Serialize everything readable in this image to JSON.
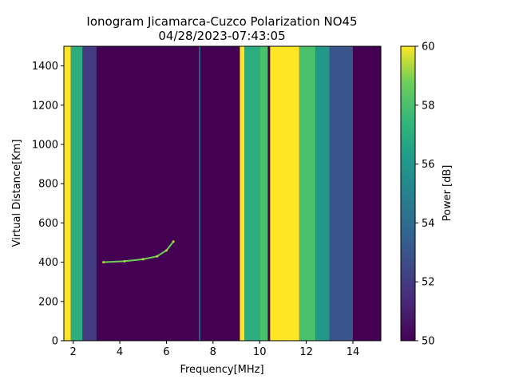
{
  "chart_data": {
    "type": "heatmap",
    "title": "Ionogram Jicamarca-Cuzco Polarization NO45",
    "subtitle": "04/28/2023-07:43:05",
    "xlabel": "Frequency[MHz]",
    "ylabel": "Virtual Distance[Km]",
    "xlim": [
      1.6,
      15.2
    ],
    "ylim": [
      0,
      1500
    ],
    "xticks": [
      2,
      4,
      6,
      8,
      10,
      12,
      14
    ],
    "xtick_labels": [
      "2",
      "4",
      "6",
      "8",
      "10",
      "12",
      "14"
    ],
    "yticks": [
      0,
      200,
      400,
      600,
      800,
      1000,
      1200,
      1400
    ],
    "ytick_labels": [
      "0",
      "200",
      "400",
      "600",
      "800",
      "1000",
      "1200",
      "1400"
    ],
    "colorbar": {
      "label": "Power [dB]",
      "range": [
        50,
        60
      ],
      "ticks": [
        50,
        52,
        54,
        56,
        58,
        60
      ],
      "tick_labels": [
        "50",
        "52",
        "54",
        "56",
        "58",
        "60"
      ],
      "colormap": "viridis"
    },
    "interference_bands_mhz": [
      {
        "from": 1.6,
        "to": 1.9,
        "level": 60
      },
      {
        "from": 1.9,
        "to": 2.4,
        "level": 57
      },
      {
        "from": 2.4,
        "to": 3.0,
        "level": 52
      },
      {
        "from": 7.4,
        "to": 7.45,
        "level": 55
      },
      {
        "from": 9.15,
        "to": 9.35,
        "level": 60
      },
      {
        "from": 9.35,
        "to": 10.0,
        "level": 57
      },
      {
        "from": 10.0,
        "to": 10.35,
        "level": 58
      },
      {
        "from": 10.35,
        "to": 10.45,
        "level": 50
      },
      {
        "from": 10.45,
        "to": 11.7,
        "level": 60
      },
      {
        "from": 11.7,
        "to": 12.4,
        "level": 58
      },
      {
        "from": 12.4,
        "to": 13.0,
        "level": 56
      },
      {
        "from": 13.0,
        "to": 14.0,
        "level": 53
      }
    ],
    "echo_trace": [
      {
        "f": 3.3,
        "d": 400
      },
      {
        "f": 4.2,
        "d": 405
      },
      {
        "f": 5.0,
        "d": 415
      },
      {
        "f": 5.6,
        "d": 430
      },
      {
        "f": 6.0,
        "d": 460
      },
      {
        "f": 6.3,
        "d": 505
      }
    ]
  }
}
